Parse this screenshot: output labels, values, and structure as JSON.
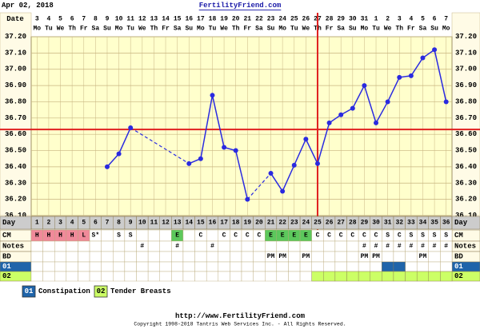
{
  "header": {
    "date": "Apr 02, 2018",
    "site": "FertilityFriend.com"
  },
  "row_labels": {
    "date": "Date",
    "day": "Day",
    "cm": "CM",
    "notes": "Notes",
    "bd": "BD"
  },
  "chart_data": {
    "type": "line",
    "categories": [
      1,
      2,
      3,
      4,
      5,
      6,
      7,
      8,
      9,
      10,
      11,
      12,
      13,
      14,
      15,
      16,
      17,
      18,
      19,
      20,
      21,
      22,
      23,
      24,
      25,
      26,
      27,
      28,
      29,
      30,
      31,
      32,
      33,
      34,
      35,
      36
    ],
    "dates": [
      3,
      4,
      5,
      6,
      7,
      8,
      9,
      10,
      11,
      12,
      13,
      14,
      15,
      16,
      17,
      18,
      19,
      20,
      21,
      22,
      23,
      24,
      25,
      26,
      27,
      28,
      29,
      30,
      31,
      1,
      2,
      3,
      4,
      5,
      6,
      7
    ],
    "weekdays": [
      "Mo",
      "Tu",
      "We",
      "Th",
      "Fr",
      "Sa",
      "Su",
      "Mo",
      "Tu",
      "We",
      "Th",
      "Fr",
      "Sa",
      "Su",
      "Mo",
      "Tu",
      "We",
      "Th",
      "Fr",
      "Sa",
      "Su",
      "Mo",
      "Tu",
      "We",
      "Th",
      "Fr",
      "Sa",
      "Su",
      "Mo",
      "Tu",
      "We",
      "Th",
      "Fr",
      "Sa",
      "Su",
      "Mo"
    ],
    "series": [
      {
        "name": "Temperature",
        "color": "#2a2ae0",
        "values": [
          null,
          null,
          null,
          null,
          null,
          null,
          36.4,
          36.48,
          36.64,
          null,
          null,
          null,
          null,
          36.42,
          36.45,
          36.84,
          36.52,
          36.5,
          36.2,
          null,
          36.36,
          36.25,
          36.41,
          36.57,
          36.42,
          36.67,
          36.72,
          36.76,
          36.9,
          36.67,
          36.8,
          36.95,
          36.96,
          37.07,
          37.12,
          36.8
        ]
      }
    ],
    "ylim": [
      36.1,
      37.2
    ],
    "yticks": [
      {
        "value": 36.1,
        "label": "36.10"
      },
      {
        "value": 36.2,
        "label": "36.20"
      },
      {
        "value": 36.3,
        "label": "36.30"
      },
      {
        "value": 36.4,
        "label": "36.40"
      },
      {
        "value": 36.5,
        "label": "36.50"
      },
      {
        "value": 36.6,
        "label": "36.60"
      },
      {
        "value": 36.7,
        "label": "36.70"
      },
      {
        "value": 36.8,
        "label": "36.80"
      },
      {
        "value": 36.9,
        "label": "36.90"
      },
      {
        "value": 37.0,
        "label": "37.00"
      },
      {
        "value": 37.1,
        "label": "37.10"
      },
      {
        "value": 37.2,
        "label": "37.20"
      }
    ],
    "coverline": 36.63,
    "ovulation_day": 25,
    "grid": true
  },
  "rows": {
    "cm": [
      "H",
      "H",
      "H",
      "H",
      "L",
      "S*",
      null,
      "S",
      "S",
      null,
      null,
      null,
      "E",
      null,
      "C",
      null,
      "C",
      "C",
      "C",
      "C",
      "E",
      "E",
      "E",
      "E",
      "C",
      "C",
      "C",
      "C",
      "C",
      "C",
      "S",
      "C",
      "S",
      "S",
      "S",
      "S"
    ],
    "cm_colors": {
      "H": "#f08a9a",
      "L": "#f08a9a",
      "E": "#5cc85c"
    },
    "notes": [
      null,
      null,
      null,
      null,
      null,
      null,
      null,
      null,
      null,
      "#",
      null,
      null,
      "#",
      null,
      null,
      "#",
      null,
      null,
      null,
      null,
      null,
      null,
      null,
      null,
      null,
      null,
      null,
      null,
      "#",
      "#",
      "#",
      "#",
      "#",
      "#",
      "#",
      "#"
    ],
    "bd": [
      null,
      null,
      null,
      null,
      null,
      null,
      null,
      null,
      null,
      null,
      null,
      null,
      null,
      null,
      null,
      null,
      null,
      null,
      null,
      null,
      "PM",
      "PM",
      null,
      "PM",
      null,
      null,
      null,
      null,
      "PM",
      "PM",
      null,
      null,
      null,
      "PM",
      null,
      null
    ]
  },
  "legend": [
    {
      "code": "01",
      "label": "Constipation",
      "color": "#1f64aa",
      "days": [
        31,
        32
      ]
    },
    {
      "code": "02",
      "label": "Tender Breasts",
      "color": "#ccff66",
      "days": [
        25,
        26,
        27,
        28,
        29,
        30,
        31,
        32,
        33,
        34,
        35,
        36
      ]
    }
  ],
  "footer": {
    "url": "http://www.FertilityFriend.com",
    "copyright": "Copyright 1998-2018 Tantris Web Services Inc. - All Rights Reserved."
  }
}
